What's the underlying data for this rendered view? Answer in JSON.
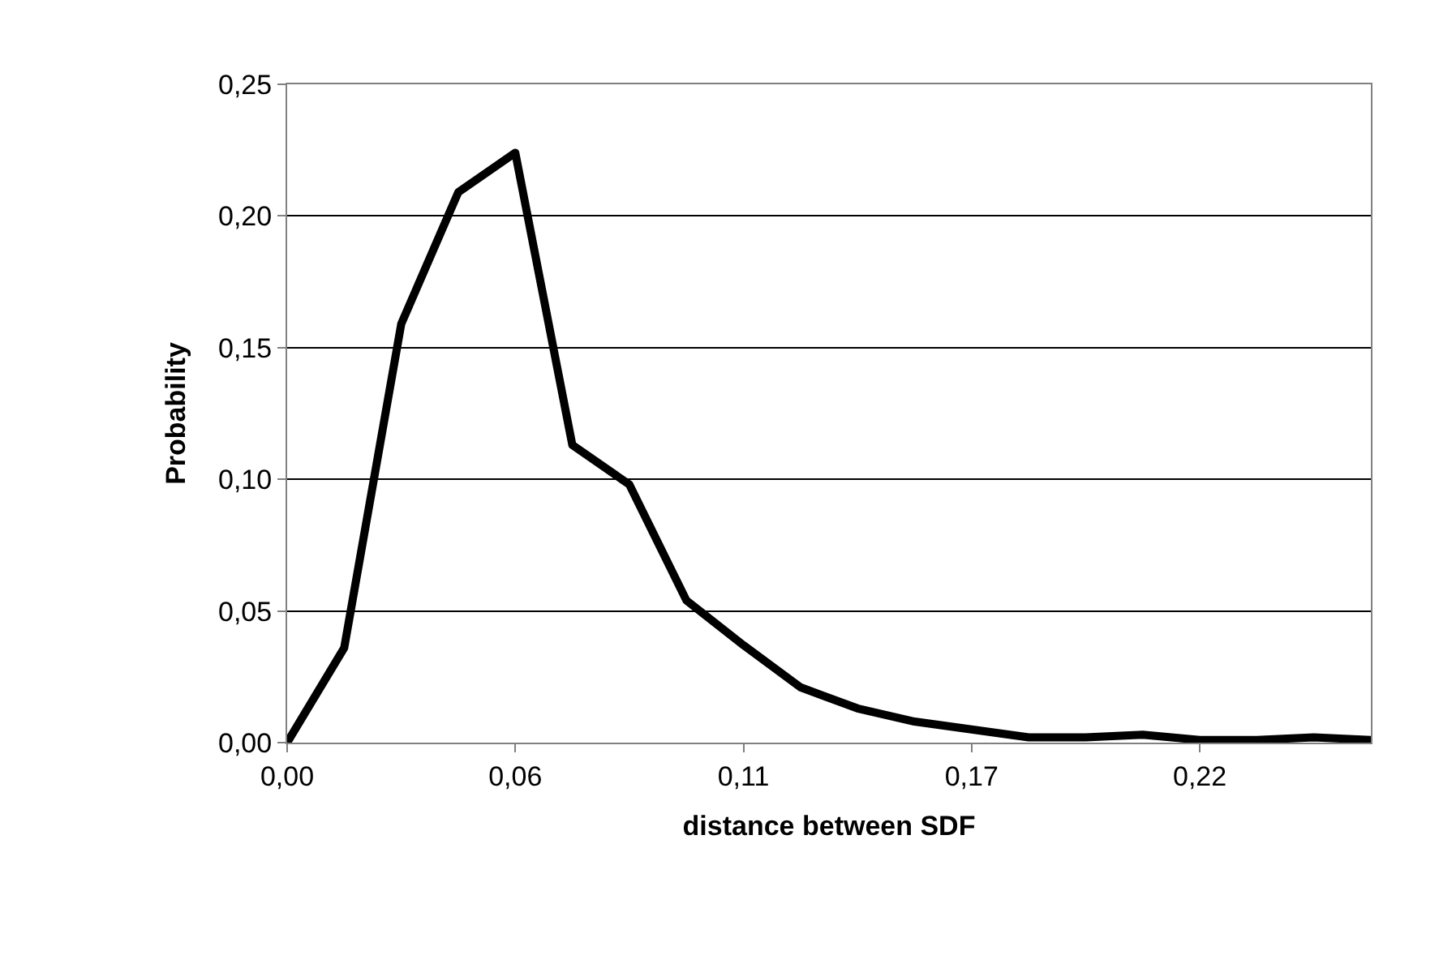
{
  "chart_data": {
    "type": "line",
    "xlabel": "distance between SDF",
    "ylabel": "Probability",
    "categories": [
      "0,00",
      null,
      null,
      null,
      "0,06",
      null,
      null,
      null,
      "0,11",
      null,
      null,
      null,
      "0,17",
      null,
      null,
      null,
      "0,22",
      null,
      null,
      null
    ],
    "series": [
      {
        "color": "#000000",
        "values": [
          0.0,
          0.036,
          0.159,
          0.209,
          0.224,
          0.113,
          0.098,
          0.054,
          0.037,
          0.021,
          0.013,
          0.008,
          0.005,
          0.002,
          0.002,
          0.003,
          0.001,
          0.001,
          0.002,
          0.001
        ]
      }
    ],
    "ylim": [
      0,
      0.25
    ],
    "yticks": [
      {
        "value": 0,
        "label": "0,00"
      },
      {
        "value": 0.05,
        "label": "0,05"
      },
      {
        "value": 0.1,
        "label": "0,10"
      },
      {
        "value": 0.15,
        "label": "0,15"
      },
      {
        "value": 0.2,
        "label": "0,20"
      },
      {
        "value": 0.25,
        "label": "0,25"
      }
    ],
    "grid": "y",
    "marker": "none",
    "line_style": "solid"
  }
}
